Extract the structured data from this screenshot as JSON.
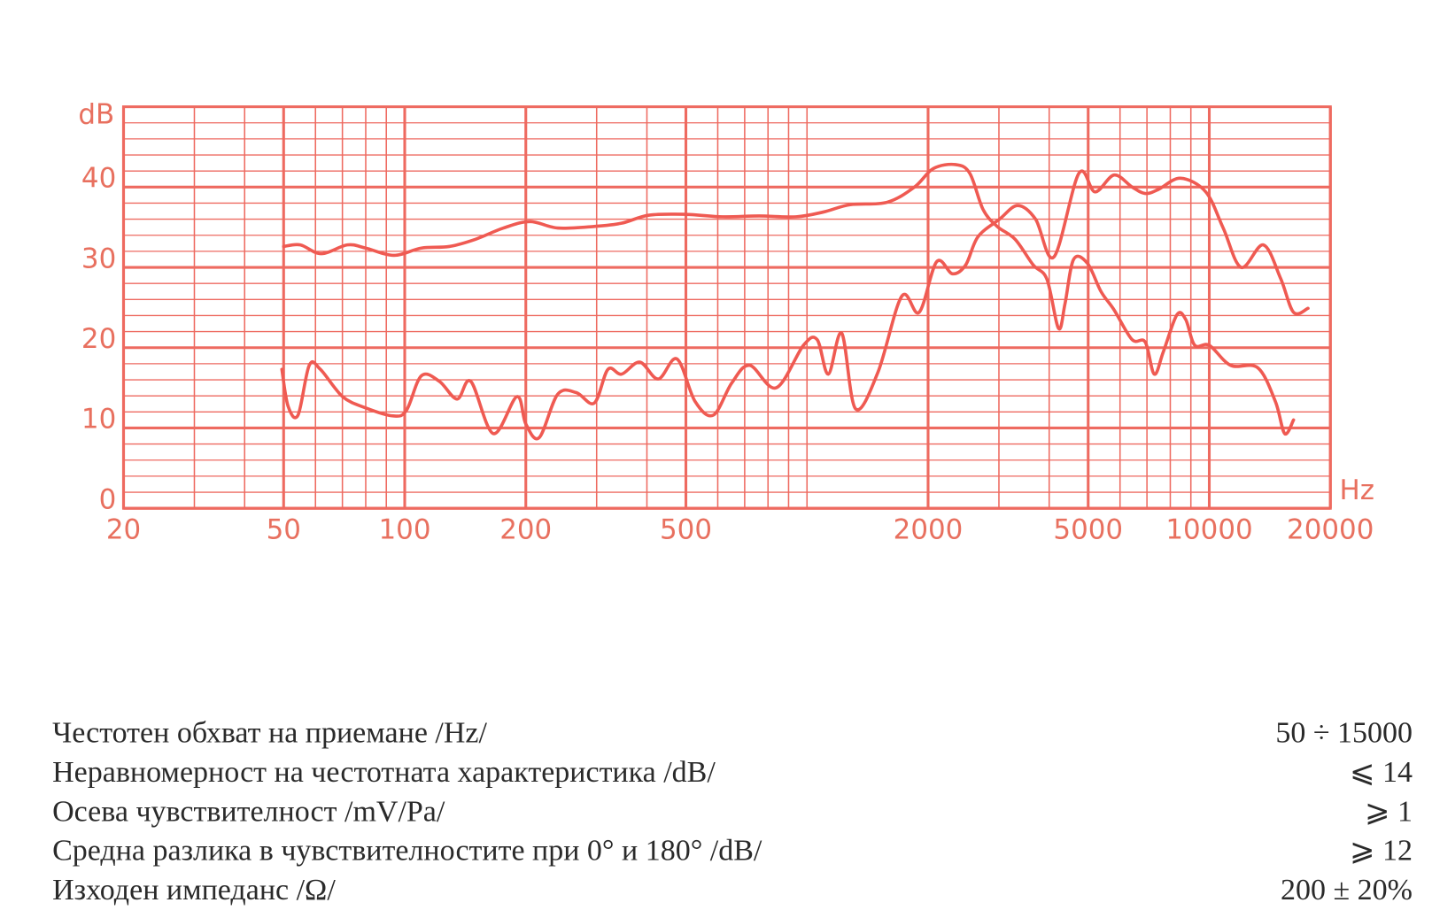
{
  "chart_data": {
    "type": "line",
    "y_label": "dB",
    "x_label": "Hz",
    "x_log": true,
    "grid": true,
    "axis_color": "#e8705f",
    "grid_color": "#ee6a60",
    "xlim": [
      20,
      20000
    ],
    "ylim": [
      0,
      50
    ],
    "xticks": [
      20,
      50,
      100,
      200,
      500,
      2000,
      5000,
      10000,
      20000
    ],
    "yticks": [
      0,
      10,
      20,
      30,
      40
    ],
    "x_minor_grid": [
      30,
      40,
      60,
      70,
      80,
      90,
      300,
      400,
      600,
      700,
      800,
      900,
      1000,
      3000,
      4000,
      6000,
      7000,
      8000,
      9000
    ],
    "y_minor_grid": [
      2,
      4,
      6,
      8,
      12,
      14,
      16,
      18,
      22,
      24,
      26,
      28,
      32,
      34,
      36,
      38,
      42,
      44,
      46,
      48
    ],
    "series": [
      {
        "color": "#ef5a52",
        "x": [
          50,
          55,
          62,
          72,
          80,
          94,
          110,
          129,
          150,
          176,
          205,
          240,
          296,
          346,
          405,
          500,
          617,
          760,
          940,
          1100,
          1280,
          1580,
          1850,
          2060,
          2340,
          2540,
          2740,
          2970,
          3290,
          3650,
          3950,
          4220,
          4380,
          4600,
          4980,
          5380,
          5800,
          6430,
          6930,
          7300,
          7690,
          8310,
          8740,
          9200,
          10000,
          11300,
          13200,
          14600,
          15400,
          16200
        ],
        "values": [
          32.6,
          32.8,
          31.7,
          32.8,
          32.4,
          31.5,
          32.4,
          32.6,
          33.5,
          34.9,
          35.7,
          34.9,
          35.1,
          35.5,
          36.5,
          36.6,
          36.3,
          36.4,
          36.3,
          36.9,
          37.8,
          38.1,
          40,
          42.3,
          42.8,
          41.7,
          37.2,
          35.1,
          33.5,
          30.3,
          28.5,
          22.4,
          25.5,
          31,
          30.5,
          27,
          24.7,
          21,
          20.7,
          16.7,
          19.5,
          24.1,
          23.5,
          20.3,
          20.3,
          17.8,
          17.5,
          13.3,
          9.3,
          11
        ]
      },
      {
        "color": "#ef5a52",
        "x": [
          49.5,
          51.3,
          54.3,
          57.9,
          61.7,
          70.1,
          80,
          93.6,
          101,
          110,
          122,
          135,
          146,
          166,
          190,
          200,
          216,
          240,
          267,
          296,
          320,
          346,
          384,
          427,
          475,
          527,
          585,
          650,
          720,
          838,
          980,
          1060,
          1130,
          1220,
          1320,
          1500,
          1720,
          1900,
          2100,
          2300,
          2480,
          2660,
          3010,
          3340,
          3700,
          4110,
          4740,
          5200,
          5800,
          6430,
          6930,
          7470,
          8480,
          9800,
          10830,
          12000,
          13630,
          15050,
          16200,
          17600
        ],
        "values": [
          17.3,
          12.7,
          11.6,
          17.8,
          17.3,
          13.9,
          12.5,
          11.5,
          12.2,
          16.5,
          15.8,
          13.6,
          15.8,
          9.3,
          13.9,
          10.5,
          8.8,
          14.2,
          14.4,
          13.1,
          17.3,
          16.7,
          18.2,
          16.1,
          18.6,
          13.3,
          11.6,
          15.6,
          17.8,
          15,
          20.3,
          21,
          16.7,
          21.8,
          12.4,
          16.9,
          26.4,
          24.4,
          30.7,
          29.2,
          30.3,
          33.8,
          36,
          37.7,
          36,
          31.3,
          41.7,
          39.4,
          41.5,
          40,
          39.2,
          39.7,
          41.1,
          39.4,
          34.9,
          30,
          32.8,
          28.6,
          24.4,
          24.9
        ]
      }
    ]
  },
  "specs": {
    "rows": [
      [
        "Честотен обхват на приемане /Hz/",
        "50 ÷ 15000"
      ],
      [
        "Неравномерност на честотната характеристика /dB/",
        "⩽ 14"
      ],
      [
        "Осева чувствителност /mV/Pa/",
        "⩾ 1"
      ],
      [
        "Средна разлика в чувствителностите при 0° и 180° /dB/",
        "⩾ 12"
      ],
      [
        "Изходен импеданс /Ω/",
        "200 ± 20%"
      ]
    ]
  }
}
